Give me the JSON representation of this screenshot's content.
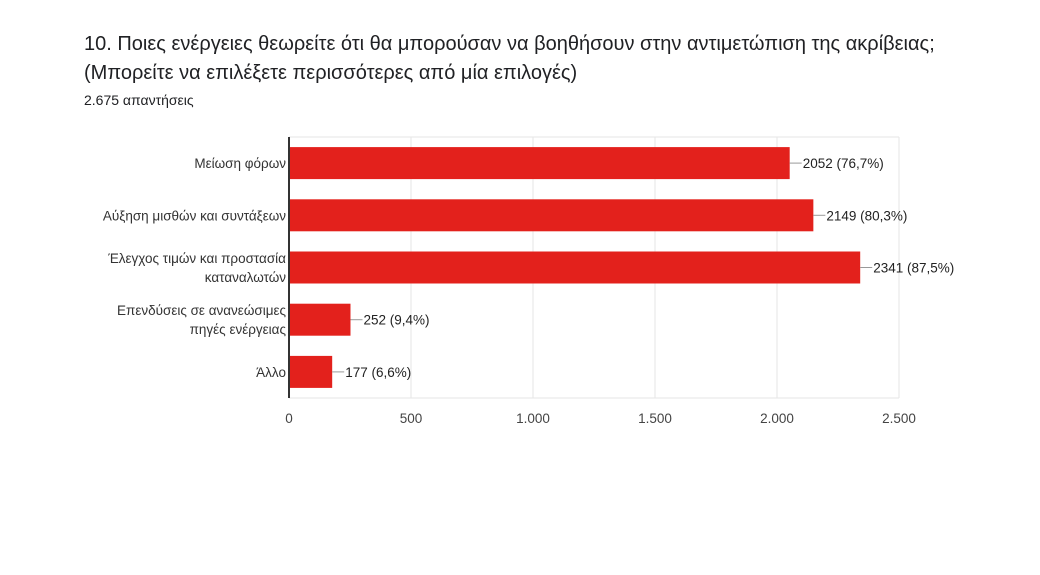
{
  "question": {
    "title": "10. Ποιες ενέργειες θεωρείτε ότι θα μπορούσαν να βοηθήσουν στην αντιμετώπιση της ακρίβειας; (Μπορείτε να επιλέξετε περισσότερες από μία επιλογές)",
    "responses": "2.675 απαντήσεις"
  },
  "chart_data": {
    "type": "bar",
    "orientation": "horizontal",
    "categories": [
      [
        "Μείωση φόρων"
      ],
      [
        "Αύξηση μισθών και συντάξεων"
      ],
      [
        "Έλεγχος τιμών και προστασία",
        "καταναλωτών"
      ],
      [
        "Επενδύσεις σε ανανεώσιμες",
        "πηγές ενέργειας"
      ],
      [
        "Άλλο"
      ]
    ],
    "values": [
      2052,
      2149,
      2341,
      252,
      177
    ],
    "value_labels": [
      "2052 (76,7%)",
      "2149 (80,3%)",
      "2341 (87,5%)",
      "252 (9,4%)",
      "177 (6,6%)"
    ],
    "xlim": [
      0,
      2500
    ],
    "xticks": [
      0,
      500,
      1000,
      1500,
      2000,
      2500
    ],
    "xtick_labels": [
      "0",
      "500",
      "1.000",
      "1.500",
      "2.000",
      "2.500"
    ],
    "bar_color": "#e3211c",
    "grid": true
  }
}
